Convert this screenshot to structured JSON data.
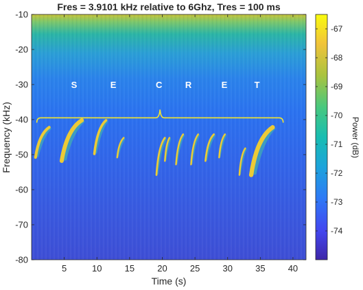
{
  "chart_data": {
    "type": "heatmap",
    "title": "Fres = 3.9101 kHz relative to 6Ghz, Tres = 100 ms",
    "xlabel": "Time (s)",
    "ylabel": "Frequency (kHz)",
    "xlim": [
      0,
      42
    ],
    "ylim": [
      -80,
      -10
    ],
    "x_ticks": [
      5,
      10,
      15,
      20,
      25,
      30,
      35,
      40
    ],
    "y_ticks": [
      -10,
      -20,
      -30,
      -40,
      -50,
      -60,
      -70,
      -80
    ],
    "colorbar": {
      "label": "Power (dB)",
      "range": [
        -75,
        -66.5
      ],
      "ticks": [
        -67,
        -68,
        -69,
        -70,
        -71,
        -72,
        -73,
        -74
      ]
    },
    "annotation": {
      "letters": [
        "S",
        "E",
        "C",
        "R",
        "E",
        "T"
      ],
      "letter_times": [
        6.5,
        12.5,
        19.5,
        24,
        29.5,
        34.5
      ],
      "letter_freq": -30,
      "brace_x_range": [
        0.8,
        38.5
      ],
      "brace_freq": -39.5,
      "color": "#f5e62e"
    },
    "signals": [
      {
        "t_start": 0.5,
        "t_end": 2.8,
        "f_low": -51,
        "f_high": -42
      },
      {
        "t_start": 4.5,
        "t_end": 7.8,
        "f_low": -52,
        "f_high": -40
      },
      {
        "t_start": 9.5,
        "t_end": 11.5,
        "f_low": -50,
        "f_high": -40
      },
      {
        "t_start": 13.0,
        "t_end": 14.2,
        "f_low": -51,
        "f_high": -45
      },
      {
        "t_start": 19.0,
        "t_end": 20.5,
        "f_low": -56,
        "f_high": -45
      },
      {
        "t_start": 20.3,
        "t_end": 21.2,
        "f_low": -52,
        "f_high": -45
      },
      {
        "t_start": 22.0,
        "t_end": 23.3,
        "f_low": -53,
        "f_high": -44
      },
      {
        "t_start": 24.3,
        "t_end": 25.6,
        "f_low": -53,
        "f_high": -44
      },
      {
        "t_start": 26.5,
        "t_end": 28.0,
        "f_low": -52,
        "f_high": -44
      },
      {
        "t_start": 28.6,
        "t_end": 29.7,
        "f_low": -51,
        "f_high": -44
      },
      {
        "t_start": 31.7,
        "t_end": 32.8,
        "f_low": -56,
        "f_high": -48
      },
      {
        "t_start": 33.5,
        "t_end": 37.0,
        "f_low": -56,
        "f_high": -42
      }
    ]
  }
}
